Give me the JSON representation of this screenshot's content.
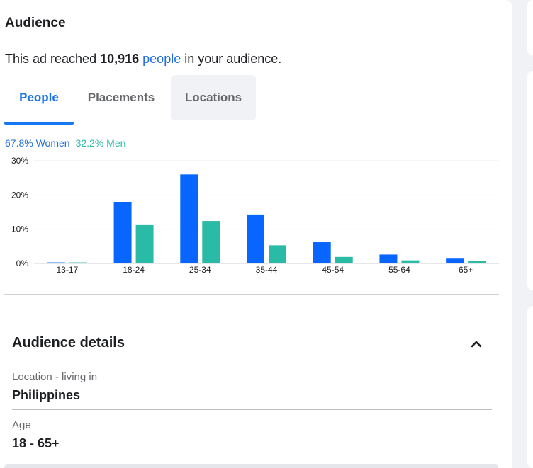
{
  "audience": {
    "title": "Audience",
    "reach_prefix": "This ad reached ",
    "reach_number": "10,916",
    "reach_link": "people",
    "reach_suffix": " in your audience."
  },
  "tabs": [
    {
      "label": "People",
      "state": "active"
    },
    {
      "label": "Placements",
      "state": "default"
    },
    {
      "label": "Locations",
      "state": "hover"
    }
  ],
  "gender": {
    "women": "67.8% Women",
    "men": "32.2% Men",
    "women_color": "#216fdb",
    "men_color": "#2abba7"
  },
  "chart_data": {
    "type": "bar",
    "categories": [
      "13-17",
      "18-24",
      "25-34",
      "35-44",
      "45-54",
      "55-64",
      "65+"
    ],
    "y_ticks": [
      "30%",
      "20%",
      "10%",
      "0%"
    ],
    "ylim": [
      0,
      30
    ],
    "grid": true,
    "series": [
      {
        "name": "Women",
        "color": "#0866ff",
        "values": [
          0.3,
          17.8,
          26.0,
          14.3,
          6.2,
          2.6,
          1.4
        ]
      },
      {
        "name": "Men",
        "color": "#2abba7",
        "values": [
          0.3,
          11.2,
          12.4,
          5.3,
          1.9,
          0.9,
          0.7
        ]
      }
    ]
  },
  "details": {
    "title": "Audience details",
    "location_label": "Location - living in",
    "location_value": "Philippines",
    "age_label": "Age",
    "age_value": "18 - 65+"
  }
}
